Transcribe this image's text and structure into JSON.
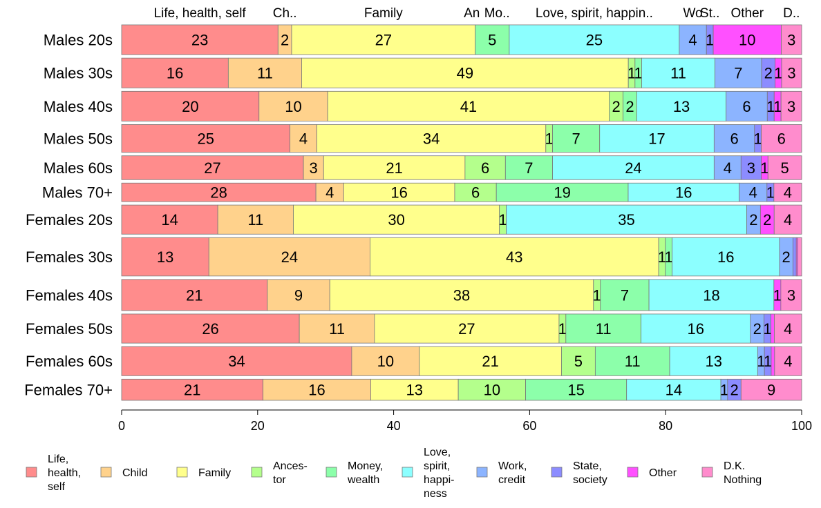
{
  "chart_data": {
    "type": "bar",
    "orientation": "horizontal",
    "stacked": true,
    "xlim": [
      0,
      100
    ],
    "x_ticks": [
      "0",
      "20",
      "40",
      "60",
      "80",
      "100"
    ],
    "categories": [
      "Males 20s",
      "Males 30s",
      "Males 40s",
      "Males 50s",
      "Males 60s",
      "Males 70+",
      "Females 20s",
      "Females 30s",
      "Females 40s",
      "Females 50s",
      "Females 60s",
      "Females 70+"
    ],
    "row_weights": [
      45,
      45,
      45,
      42,
      36,
      28,
      44,
      58,
      47,
      44,
      44,
      32
    ],
    "column_top_labels": [
      "Life, health, self",
      "Ch..",
      "Family",
      "An",
      "Mo..",
      "Love, spirit, happin..",
      "Wo",
      "St..",
      "Other",
      "D.."
    ],
    "series": [
      {
        "key": "life",
        "legend": [
          "Life,",
          "health,",
          "self"
        ],
        "color": "#ff8c8c",
        "values": [
          23,
          16,
          20,
          25,
          27,
          28,
          14,
          13,
          21,
          26,
          34,
          21
        ]
      },
      {
        "key": "child",
        "legend": [
          "Child"
        ],
        "color": "#ffd28c",
        "values": [
          2,
          11,
          10,
          4,
          3,
          4,
          11,
          24,
          9,
          11,
          10,
          16
        ]
      },
      {
        "key": "family",
        "legend": [
          "Family"
        ],
        "color": "#ffff8c",
        "values": [
          27,
          49,
          41,
          34,
          21,
          16,
          30,
          43,
          38,
          27,
          21,
          13
        ]
      },
      {
        "key": "ancestor",
        "legend": [
          "Ances-",
          "tor"
        ],
        "color": "#b4ff8c",
        "values": [
          0,
          1,
          2,
          1,
          6,
          6,
          1,
          1,
          1,
          1,
          5,
          10
        ]
      },
      {
        "key": "money",
        "legend": [
          "Money,",
          "wealth"
        ],
        "color": "#8cffaa",
        "values": [
          5,
          1,
          2,
          7,
          7,
          19,
          0,
          1,
          7,
          11,
          11,
          15
        ]
      },
      {
        "key": "love",
        "legend": [
          "Love,",
          "spirit,",
          "happi-",
          "ness"
        ],
        "color": "#8cffff",
        "values": [
          25,
          11,
          13,
          17,
          24,
          16,
          35,
          16,
          18,
          16,
          13,
          14
        ]
      },
      {
        "key": "work",
        "legend": [
          "Work,",
          "credit"
        ],
        "color": "#8cb4ff",
        "values": [
          4,
          7,
          6,
          6,
          4,
          4,
          2,
          2,
          0,
          2,
          1,
          1
        ]
      },
      {
        "key": "state",
        "legend": [
          "State,",
          "society"
        ],
        "color": "#8c8cff",
        "values": [
          1,
          2,
          1,
          1,
          3,
          1,
          0,
          0.5,
          0,
          1,
          1,
          2
        ]
      },
      {
        "key": "other",
        "legend": [
          "Other"
        ],
        "color": "#ff50ff",
        "values": [
          10,
          1,
          1,
          0,
          1,
          0,
          2,
          0.2,
          1,
          0.5,
          0.5,
          0
        ]
      },
      {
        "key": "dk",
        "legend": [
          "D.K.",
          "Nothing"
        ],
        "color": "#ff8ccd",
        "values": [
          3,
          3,
          3,
          6,
          5,
          4,
          4,
          0.6,
          3,
          4,
          4,
          9
        ]
      }
    ]
  }
}
